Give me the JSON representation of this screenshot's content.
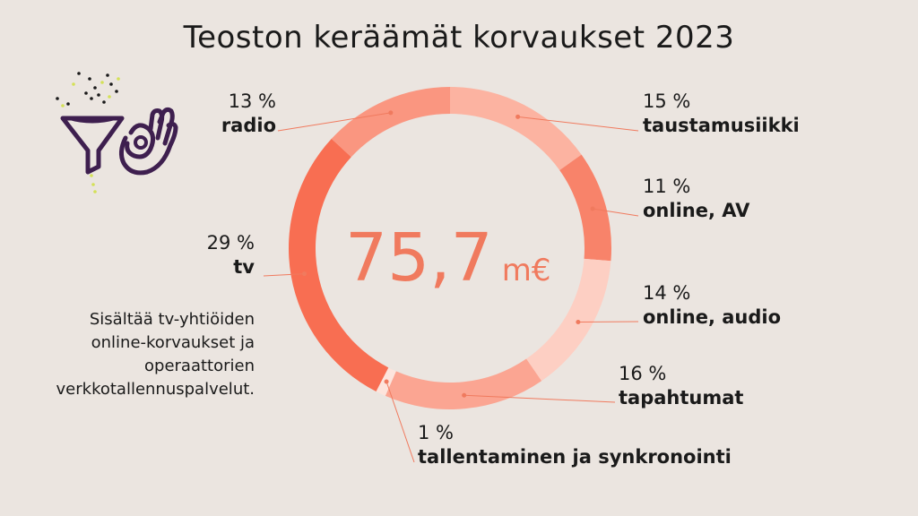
{
  "title": "Teoston keräämät korvaukset 2023",
  "total": {
    "value": "75,7",
    "unit": "m€"
  },
  "note": [
    "Sisältää tv-yhtiöiden",
    "online-korvaukset ja",
    "operaattorien",
    "verkkotallennuspalvelut."
  ],
  "chart_data": {
    "type": "pie",
    "style": "donut",
    "title": "Teoston keräämät korvaukset 2023",
    "total_label": "75,7 m€",
    "slices": [
      {
        "label": "taustamusiikki",
        "value": 15,
        "value_label": "15 %",
        "color": "#fcb3a1"
      },
      {
        "label": "online, AV",
        "value": 11,
        "value_label": "11 %",
        "color": "#f8836a"
      },
      {
        "label": "online, audio",
        "value": 14,
        "value_label": "14 %",
        "color": "#fdcfc3"
      },
      {
        "label": "tapahtumat",
        "value": 16,
        "value_label": "16 %",
        "color": "#fba592"
      },
      {
        "label": "tallentaminen ja synkronointi",
        "value": 1,
        "value_label": "1 %",
        "color": "#fde4dc"
      },
      {
        "label": "tv",
        "value": 29,
        "value_label": "29 %",
        "color": "#f86e52"
      },
      {
        "label": "radio",
        "value": 13,
        "value_label": "13 %",
        "color": "#fa9680"
      }
    ]
  },
  "colors": {
    "background": "#ebe5e0",
    "accent": "#f07a5e",
    "icon": "#3e1f4f",
    "dots": "#d4e157"
  },
  "icons": [
    "funnel-icon",
    "ok-hand-icon"
  ]
}
